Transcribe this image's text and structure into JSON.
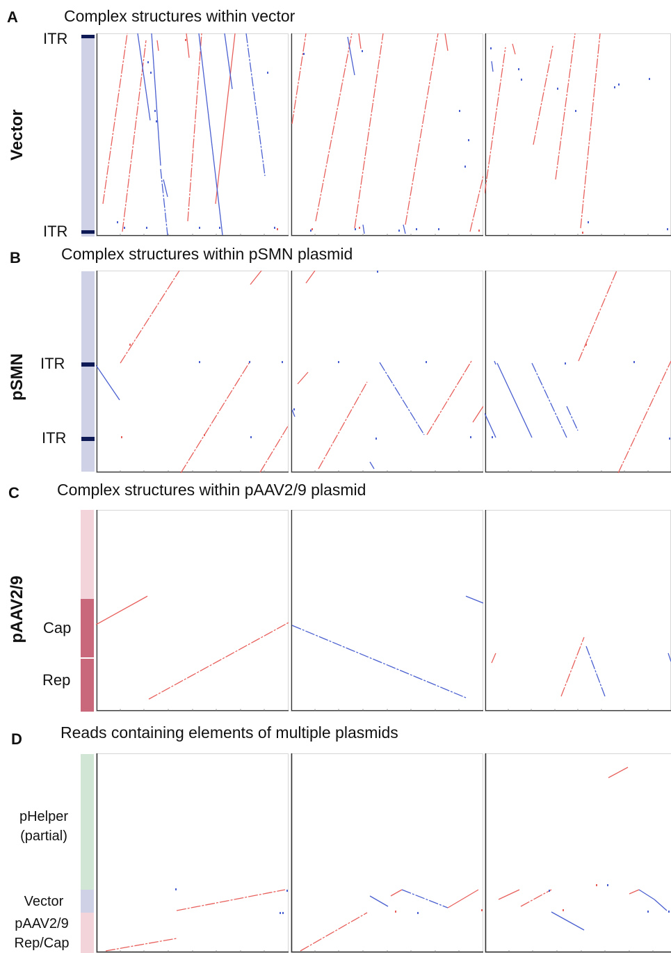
{
  "panels": [
    {
      "letter": "A",
      "title": "Complex structures within vector",
      "side_label": "Vector",
      "bar_color": "#cfd1e6",
      "segments": [
        {
          "label": "ITR",
          "color": "#0d1a55",
          "kind": "marker"
        },
        {
          "label": "ITR",
          "color": "#0d1a55",
          "kind": "marker"
        }
      ]
    },
    {
      "letter": "B",
      "title": "Complex structures within pSMN plasmid",
      "side_label": "pSMN",
      "bar_color": "#cfd1e6",
      "segments": [
        {
          "label": "ITR",
          "color": "#0d1a55",
          "kind": "marker"
        },
        {
          "label": "ITR",
          "color": "#0d1a55",
          "kind": "marker"
        }
      ]
    },
    {
      "letter": "C",
      "title": "Complex structures within pAAV2/9 plasmid",
      "side_label": "pAAV2/9",
      "segments": [
        {
          "label": "",
          "color": "#f3d4da",
          "kind": "region"
        },
        {
          "label": "Cap",
          "color": "#c8687a",
          "kind": "region"
        },
        {
          "label": "Rep",
          "color": "#c8687a",
          "kind": "region"
        }
      ]
    },
    {
      "letter": "D",
      "title": "Reads containing elements of multiple plasmids",
      "side_label": "",
      "segments": [
        {
          "label": "pHelper",
          "label2": "(partial)",
          "color": "#d2e6d6",
          "kind": "region"
        },
        {
          "label": "Vector",
          "color": "#cfd1e6",
          "kind": "region"
        },
        {
          "label": "pAAV2/9",
          "label2": "Rep/Cap",
          "color": "#f3d4da",
          "kind": "region"
        }
      ]
    }
  ],
  "colors": {
    "forward": "#e8605c",
    "reverse": "#4a5fd0",
    "axis": "#333333",
    "frame": "#d6d6d6"
  }
}
